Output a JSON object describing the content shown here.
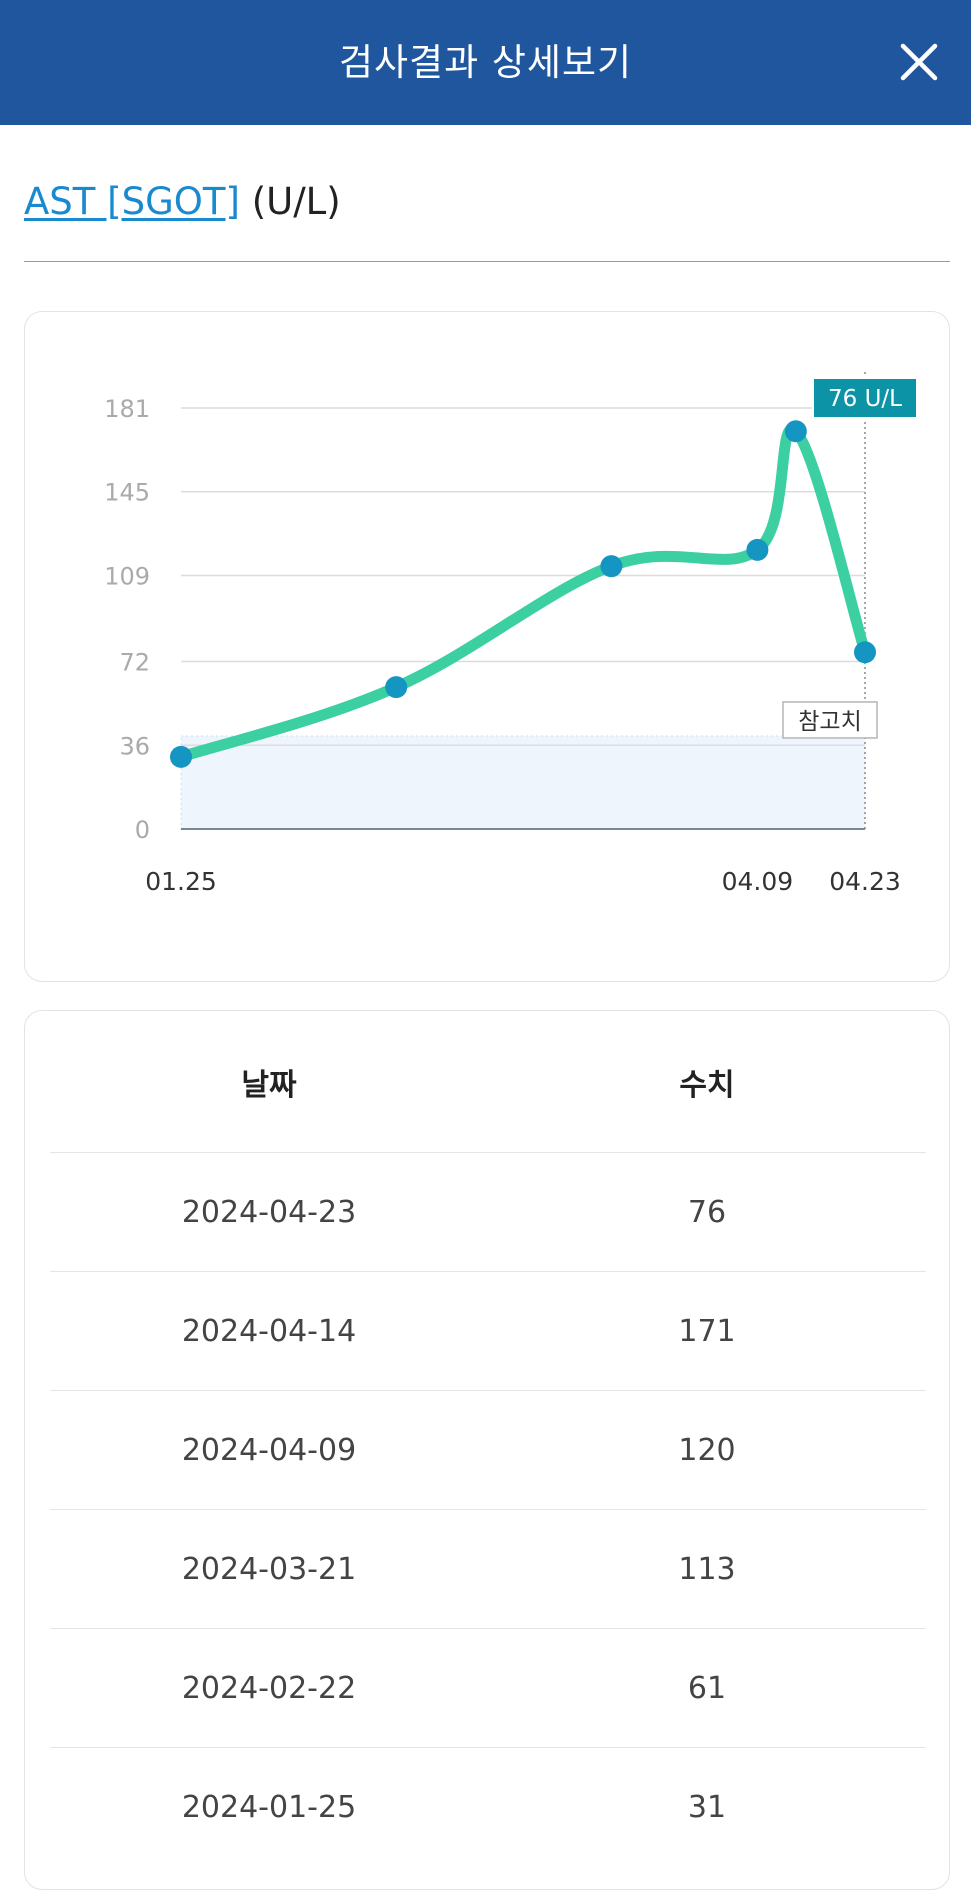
{
  "header": {
    "title": "검사결과 상세보기",
    "close_icon": "close-icon"
  },
  "test": {
    "name": "AST [SGOT]",
    "unit": "(U/L)"
  },
  "chart_data": {
    "type": "line",
    "x": [
      "2024-01-25",
      "2024-02-22",
      "2024-03-21",
      "2024-04-09",
      "2024-04-14",
      "2024-04-23"
    ],
    "x_tick_labels": [
      "01.25",
      "04.09",
      "04.23"
    ],
    "x_tick_dates": [
      "2024-01-25",
      "2024-04-09",
      "2024-04-23"
    ],
    "series": [
      {
        "values": [
          31,
          61,
          113,
          120,
          171,
          76
        ]
      }
    ],
    "y_ticks": [
      0,
      36,
      72,
      109,
      145,
      181
    ],
    "ylim": [
      0,
      181
    ],
    "reference_range": [
      0,
      40
    ],
    "reference_label": "참고치",
    "selected_label": "76 U/L",
    "grid": true,
    "colors": {
      "line": "#3ccfa2",
      "point": "#1596c2",
      "tooltip": "#0d93a6",
      "reference_fill": "#eef5fc",
      "grid": "#dcdcdc",
      "tick": "#aaaaaa",
      "xtick": "#333333"
    }
  },
  "table": {
    "headers": {
      "date": "날짜",
      "value": "수치"
    },
    "rows": [
      {
        "date": "2024-04-23",
        "value": "76"
      },
      {
        "date": "2024-04-14",
        "value": "171"
      },
      {
        "date": "2024-04-09",
        "value": "120"
      },
      {
        "date": "2024-03-21",
        "value": "113"
      },
      {
        "date": "2024-02-22",
        "value": "61"
      },
      {
        "date": "2024-01-25",
        "value": "31"
      }
    ]
  }
}
